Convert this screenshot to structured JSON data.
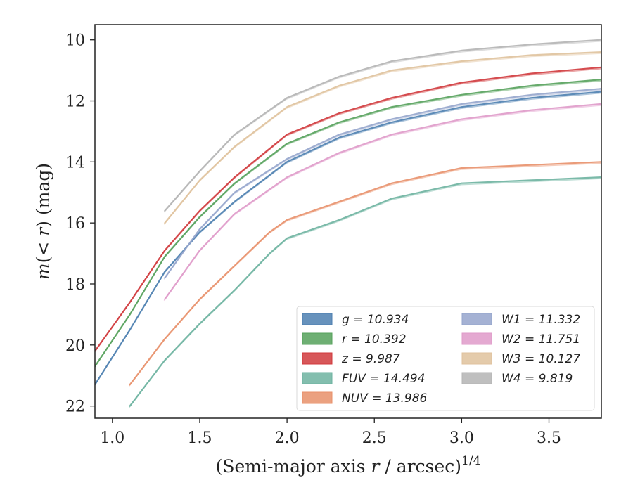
{
  "chart_data": {
    "type": "line",
    "xlabel": "(Semi-major axis r / arcsec)^{1/4}",
    "ylabel": "m(< r) (mag)",
    "xlim": [
      0.9,
      3.8
    ],
    "ylim": [
      22.4,
      9.5
    ],
    "y_inverted": true,
    "x_ticks": [
      "1.0",
      "1.5",
      "2.0",
      "2.5",
      "3.0",
      "3.5"
    ],
    "y_ticks": [
      "10",
      "12",
      "14",
      "16",
      "18",
      "20",
      "22"
    ],
    "legend_position": "lower-right",
    "legend_columns": 2,
    "series": [
      {
        "name": "g",
        "label": "g = 10.934",
        "color": "#4c7fb0",
        "x": [
          0.9,
          1.1,
          1.3,
          1.5,
          1.7,
          2.0,
          2.3,
          2.6,
          3.0,
          3.4,
          3.8
        ],
        "y": [
          21.3,
          19.5,
          17.6,
          16.3,
          15.3,
          14.0,
          13.2,
          12.7,
          12.2,
          11.9,
          11.7
        ]
      },
      {
        "name": "r",
        "label": "r = 10.392",
        "color": "#55a15b",
        "x": [
          0.9,
          1.1,
          1.3,
          1.5,
          1.7,
          2.0,
          2.3,
          2.6,
          3.0,
          3.4,
          3.8
        ],
        "y": [
          20.7,
          19.0,
          17.1,
          15.8,
          14.7,
          13.4,
          12.7,
          12.2,
          11.8,
          11.5,
          11.3
        ]
      },
      {
        "name": "z",
        "label": "z = 9.987",
        "color": "#d0393c",
        "x": [
          0.9,
          1.1,
          1.3,
          1.5,
          1.7,
          2.0,
          2.3,
          2.6,
          3.0,
          3.4,
          3.8
        ],
        "y": [
          20.2,
          18.6,
          16.9,
          15.6,
          14.5,
          13.1,
          12.4,
          11.9,
          11.4,
          11.1,
          10.9
        ]
      },
      {
        "name": "FUV",
        "label": "FUV = 14.494",
        "color": "#6db3a0",
        "x": [
          1.1,
          1.3,
          1.5,
          1.7,
          1.9,
          2.0,
          2.3,
          2.6,
          3.0,
          3.4,
          3.8
        ],
        "y": [
          22.0,
          20.5,
          19.3,
          18.2,
          17.0,
          16.5,
          15.9,
          15.2,
          14.7,
          14.6,
          14.5
        ]
      },
      {
        "name": "NUV",
        "label": "NUV = 13.986",
        "color": "#e8906a",
        "x": [
          1.1,
          1.3,
          1.5,
          1.7,
          1.9,
          2.0,
          2.3,
          2.6,
          3.0,
          3.4,
          3.8
        ],
        "y": [
          21.3,
          19.8,
          18.5,
          17.4,
          16.3,
          15.9,
          15.3,
          14.7,
          14.2,
          14.1,
          14.0
        ]
      },
      {
        "name": "W1",
        "label": "W1 = 11.332",
        "color": "#95a5cc",
        "x": [
          1.3,
          1.5,
          1.7,
          2.0,
          2.3,
          2.6,
          3.0,
          3.4,
          3.8
        ],
        "y": [
          17.8,
          16.2,
          15.0,
          13.9,
          13.1,
          12.6,
          12.1,
          11.8,
          11.6
        ]
      },
      {
        "name": "W2",
        "label": "W2 = 11.751",
        "color": "#df9ac9",
        "x": [
          1.3,
          1.5,
          1.7,
          2.0,
          2.3,
          2.6,
          3.0,
          3.4,
          3.8
        ],
        "y": [
          18.5,
          16.9,
          15.7,
          14.5,
          13.7,
          13.1,
          12.6,
          12.3,
          12.1
        ]
      },
      {
        "name": "W3",
        "label": "W3 = 10.127",
        "color": "#dfc29c",
        "x": [
          1.3,
          1.5,
          1.7,
          2.0,
          2.3,
          2.6,
          3.0,
          3.4,
          3.8
        ],
        "y": [
          16.0,
          14.6,
          13.5,
          12.2,
          11.5,
          11.0,
          10.7,
          10.5,
          10.4
        ]
      },
      {
        "name": "W4",
        "label": "W4 = 9.819",
        "color": "#b4b4b4",
        "x": [
          1.3,
          1.5,
          1.7,
          2.0,
          2.3,
          2.6,
          3.0,
          3.4,
          3.8
        ],
        "y": [
          15.6,
          14.3,
          13.1,
          11.9,
          11.2,
          10.7,
          10.35,
          10.15,
          10.0
        ]
      }
    ]
  }
}
